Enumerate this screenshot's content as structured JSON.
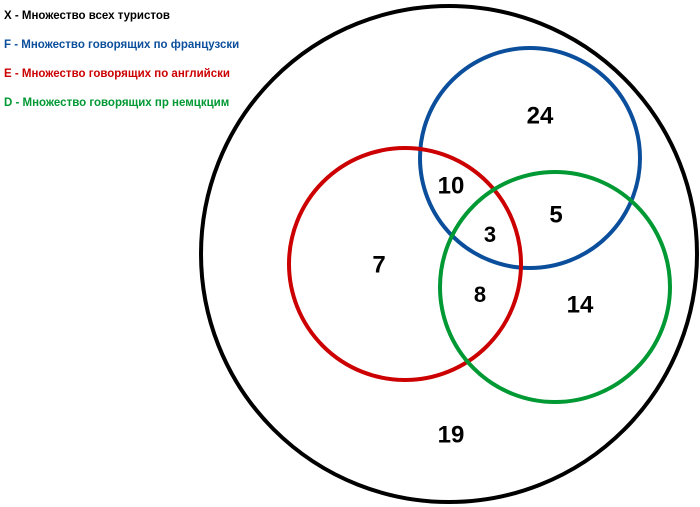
{
  "legend": [
    {
      "text": "X - Множество всех туристов",
      "color": "#000000"
    },
    {
      "text": "F - Множество говорящих по французски",
      "color": "#0b4f9c"
    },
    {
      "text": "E - Множество говорящих по английски",
      "color": "#cc0000"
    },
    {
      "text": "D - Множество говорящих пр немцкцим",
      "color": "#009933"
    }
  ],
  "sets": {
    "X": {
      "color": "#000000"
    },
    "F": {
      "color": "#0b4f9c"
    },
    "E": {
      "color": "#cc0000"
    },
    "D": {
      "color": "#009933"
    }
  },
  "regions": {
    "F_only": "24",
    "F_E": "10",
    "F_D": "5",
    "F_E_D": "3",
    "E_only": "7",
    "E_D": "8",
    "D_only": "14",
    "X_outside": "19"
  }
}
